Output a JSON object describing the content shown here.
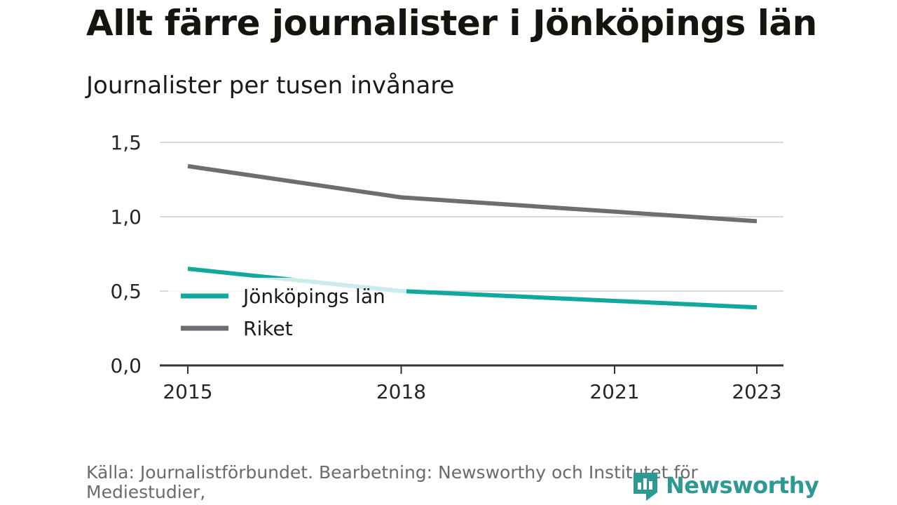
{
  "title": "Allt färre journalister i Jönköpings län",
  "subtitle": "Journalister per tusen invånare",
  "source": "Källa: Journalistförbundet. Bearbetning: Newsworthy och Institutet för Mediestudier,",
  "logo": {
    "text": "Newsworthy",
    "icon": "newsworthy-logo-icon",
    "color": "#2c9a93"
  },
  "chart_data": {
    "type": "line",
    "x": [
      2015,
      2018,
      2021,
      2023
    ],
    "x_ticks": [
      "2015",
      "2018",
      "2021",
      "2023"
    ],
    "y_ticks": [
      "0,0",
      "0,5",
      "1,0",
      "1,5"
    ],
    "y_tick_values": [
      0,
      0.5,
      1.0,
      1.5
    ],
    "ylim": [
      0,
      1.5
    ],
    "grid": true,
    "legend_position": "inside-left",
    "series": [
      {
        "name": "Jönköpings län",
        "color": "#13a89e",
        "x": [
          2015,
          2016,
          2018,
          2023
        ],
        "values": [
          0.65,
          0.6,
          0.5,
          0.39
        ]
      },
      {
        "name": "Riket",
        "color": "#6e6d74",
        "x": [
          2015,
          2018,
          2023
        ],
        "values": [
          1.34,
          1.13,
          0.97
        ]
      }
    ]
  }
}
